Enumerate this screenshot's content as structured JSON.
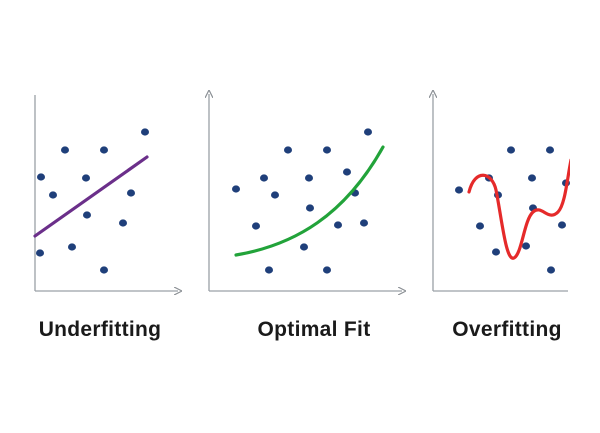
{
  "panels": [
    {
      "key": "underfit",
      "title": "Underfitting",
      "fit_color": "#6b2f8a",
      "description_of_fit": "straight line"
    },
    {
      "key": "optimal",
      "title": "Optimal Fit",
      "fit_color": "#22a33a",
      "description_of_fit": "smooth curve"
    },
    {
      "key": "overfit",
      "title": "Overfitting",
      "fit_color": "#e52a2a",
      "description_of_fit": "wiggly curve"
    }
  ],
  "colors": {
    "axis": "#9aa0a6",
    "axis_arrow": "#8a8f94",
    "point": "#1f3f7a",
    "label": "#1a1a1a",
    "background": "#ffffff"
  }
}
